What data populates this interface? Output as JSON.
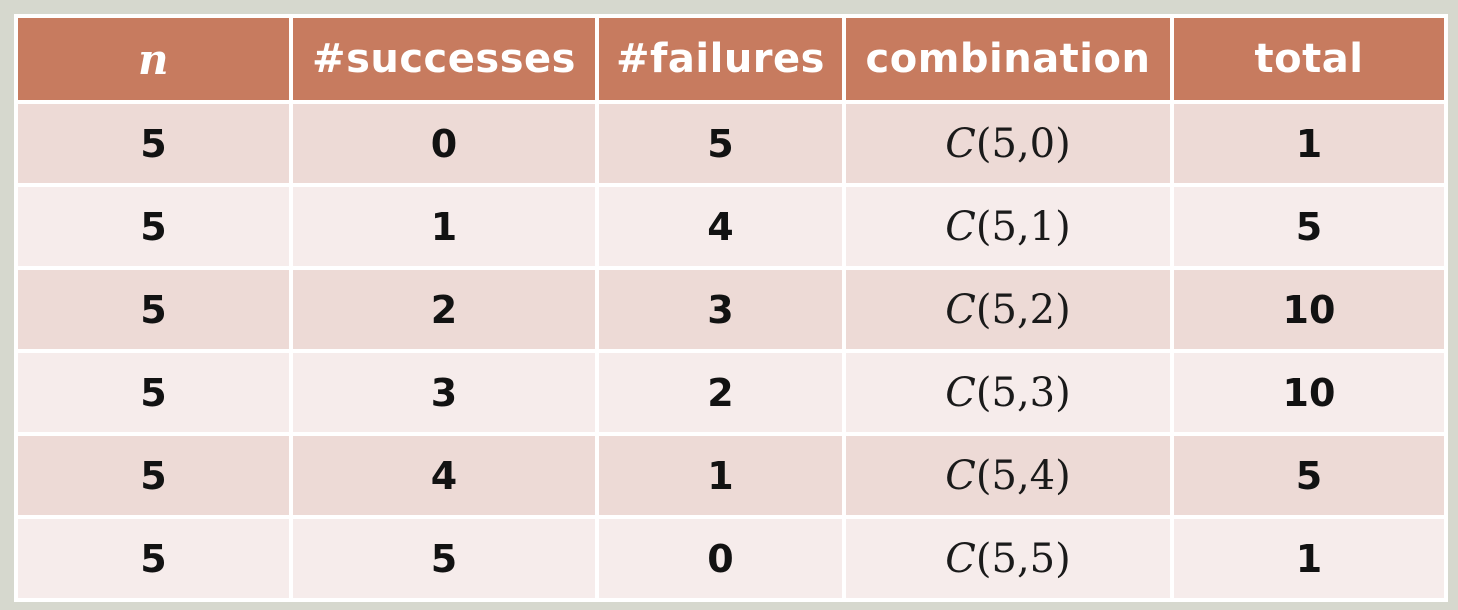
{
  "table": {
    "headers": {
      "n": "n",
      "successes": "#successes",
      "failures": "#failures",
      "combination": "combination",
      "total": "total"
    },
    "rows": [
      {
        "n": "5",
        "successes": "0",
        "failures": "5",
        "combination_fn": "C",
        "combination_args": "(5,0)",
        "total": "1"
      },
      {
        "n": "5",
        "successes": "1",
        "failures": "4",
        "combination_fn": "C",
        "combination_args": "(5,1)",
        "total": "5"
      },
      {
        "n": "5",
        "successes": "2",
        "failures": "3",
        "combination_fn": "C",
        "combination_args": "(5,2)",
        "total": "10"
      },
      {
        "n": "5",
        "successes": "3",
        "failures": "2",
        "combination_fn": "C",
        "combination_args": "(5,3)",
        "total": "10"
      },
      {
        "n": "5",
        "successes": "4",
        "failures": "1",
        "combination_fn": "C",
        "combination_args": "(5,4)",
        "total": "5"
      },
      {
        "n": "5",
        "successes": "5",
        "failures": "0",
        "combination_fn": "C",
        "combination_args": "(5,5)",
        "total": "1"
      }
    ]
  },
  "colors": {
    "header": "#c77b5f",
    "row_odd": "#eddad6",
    "row_even": "#f6eceb",
    "background": "#d6d8ce"
  }
}
